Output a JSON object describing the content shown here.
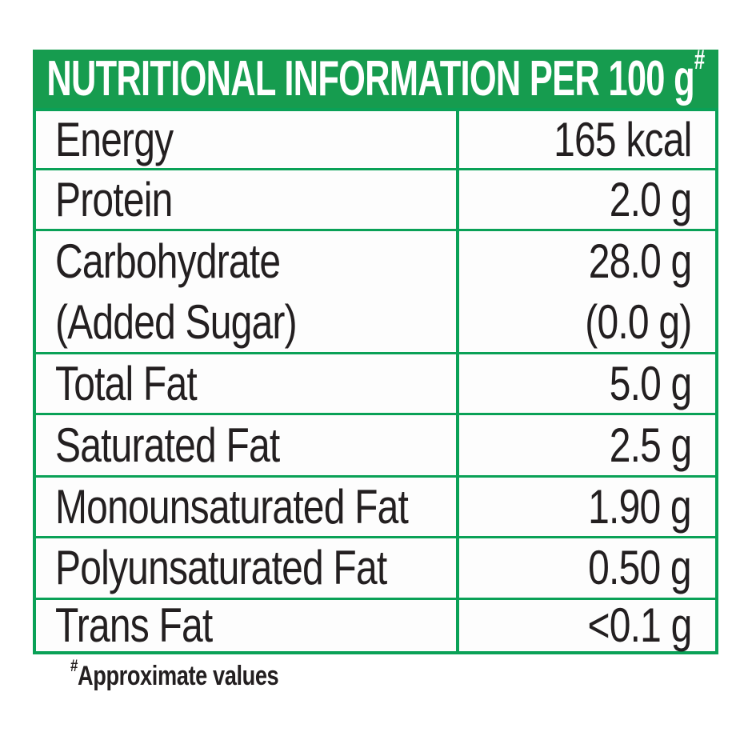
{
  "colors": {
    "header_green": "#169c4f",
    "line_green": "#0aa157",
    "text_black": "#231f20",
    "cell_background": "#fdfdfd",
    "header_text": "#ffffff"
  },
  "header": {
    "title": "NUTRITIONAL INFORMATION PER 100 g",
    "superscript": "#"
  },
  "table": {
    "rows": [
      {
        "label": "Energy",
        "value": "165 kcal"
      },
      {
        "label": "Protein",
        "value": "2.0 g"
      },
      {
        "label": "Carbohydrate",
        "label2": "(Added Sugar)",
        "value": "28.0 g",
        "value2": "(0.0 g)"
      },
      {
        "label": "Total Fat",
        "value": "5.0 g"
      },
      {
        "label": "Saturated Fat",
        "value": "2.5 g"
      },
      {
        "label": "Monounsaturated Fat",
        "value": "1.90 g"
      },
      {
        "label": "Polyunsaturated Fat",
        "value": "0.50 g"
      },
      {
        "label": "Trans Fat",
        "value": "<0.1 g"
      }
    ]
  },
  "footer": {
    "superscript": "#",
    "text": "Approximate values"
  }
}
